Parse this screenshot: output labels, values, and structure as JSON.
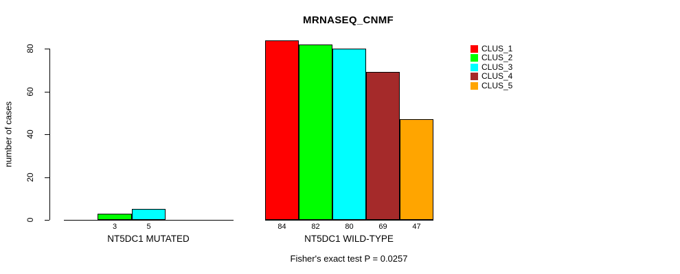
{
  "chart_data": {
    "type": "bar",
    "title": "MRNASEQ_CNMF",
    "ylabel": "number of cases",
    "ylim": [
      0,
      88
    ],
    "yticks": [
      0,
      20,
      40,
      60,
      80
    ],
    "grid": false,
    "legend_position": "right",
    "series": [
      {
        "name": "CLUS_1",
        "color": "#FF0000"
      },
      {
        "name": "CLUS_2",
        "color": "#00FF00"
      },
      {
        "name": "CLUS_3",
        "color": "#00FFFF"
      },
      {
        "name": "CLUS_4",
        "color": "#A52A2A"
      },
      {
        "name": "CLUS_5",
        "color": "#FFA500"
      }
    ],
    "groups": [
      {
        "label": "NT5DC1 MUTATED",
        "values": [
          0,
          3,
          5,
          0,
          0
        ],
        "bar_labels": [
          "",
          "3",
          "5",
          "",
          ""
        ]
      },
      {
        "label": "NT5DC1 WILD-TYPE",
        "values": [
          84,
          82,
          80,
          69,
          47
        ],
        "bar_labels": [
          "84",
          "82",
          "80",
          "69",
          "47"
        ]
      }
    ],
    "caption": "Fisher's exact test P = 0.0257"
  }
}
